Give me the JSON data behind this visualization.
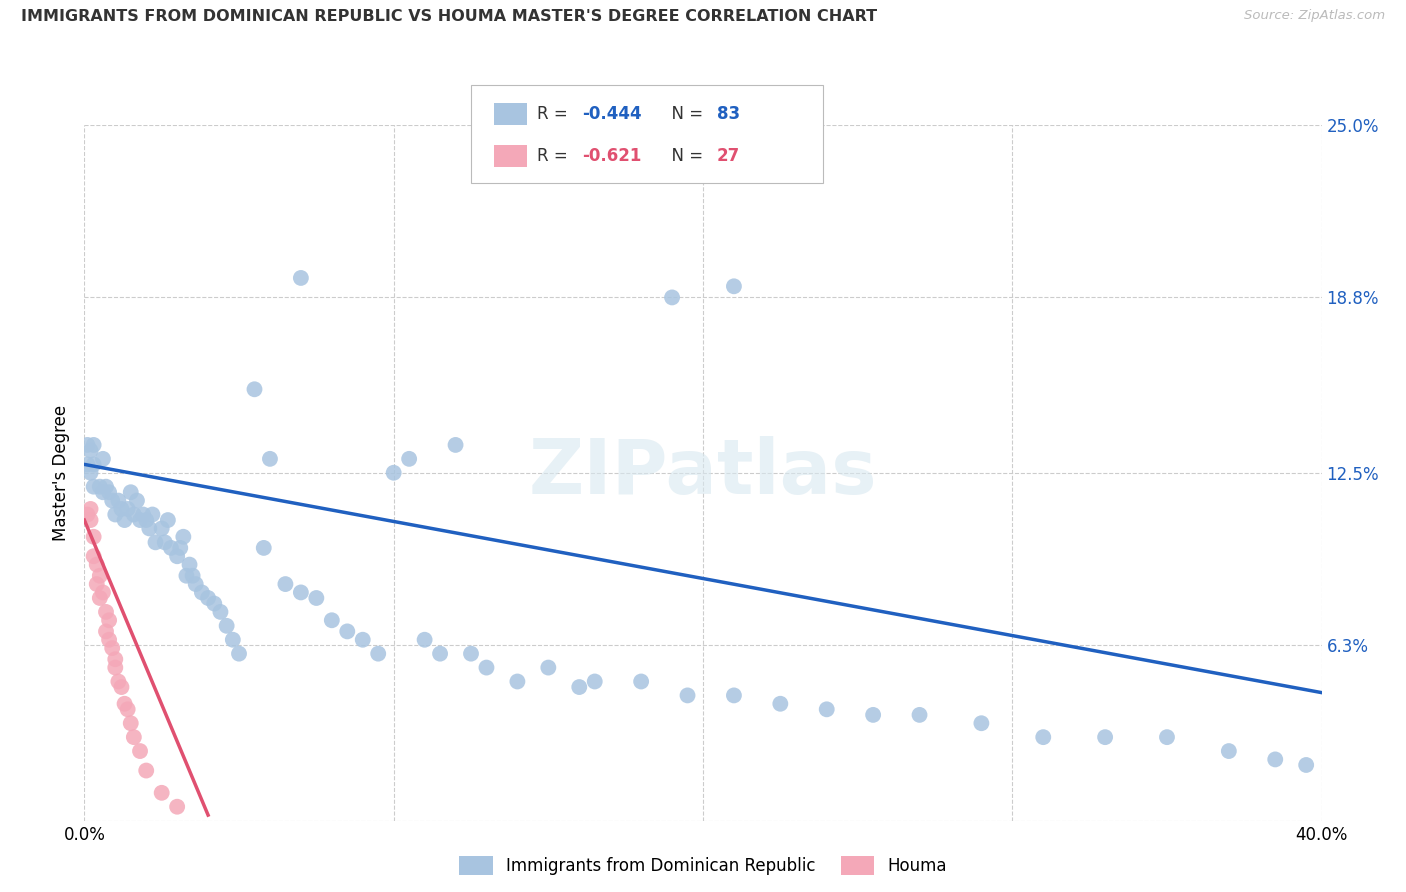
{
  "title": "IMMIGRANTS FROM DOMINICAN REPUBLIC VS HOUMA MASTER'S DEGREE CORRELATION CHART",
  "source": "Source: ZipAtlas.com",
  "ylabel": "Master's Degree",
  "xmin": 0.0,
  "xmax": 0.4,
  "ymin": 0.0,
  "ymax": 0.25,
  "blue_r": "-0.444",
  "blue_n": "83",
  "pink_r": "-0.621",
  "pink_n": "27",
  "blue_color": "#a8c4e0",
  "pink_color": "#f4a8b8",
  "blue_line_color": "#2060c0",
  "pink_line_color": "#e05070",
  "legend_label_blue": "Immigrants from Dominican Republic",
  "legend_label_pink": "Houma",
  "watermark": "ZIPatlas",
  "blue_points_x": [
    0.001,
    0.001,
    0.002,
    0.002,
    0.003,
    0.003,
    0.003,
    0.005,
    0.006,
    0.006,
    0.007,
    0.008,
    0.009,
    0.01,
    0.011,
    0.012,
    0.013,
    0.014,
    0.015,
    0.016,
    0.017,
    0.018,
    0.019,
    0.02,
    0.021,
    0.022,
    0.023,
    0.025,
    0.026,
    0.027,
    0.028,
    0.03,
    0.031,
    0.032,
    0.033,
    0.034,
    0.035,
    0.036,
    0.038,
    0.04,
    0.042,
    0.044,
    0.046,
    0.048,
    0.05,
    0.055,
    0.058,
    0.06,
    0.065,
    0.07,
    0.075,
    0.08,
    0.085,
    0.09,
    0.095,
    0.1,
    0.105,
    0.11,
    0.115,
    0.12,
    0.125,
    0.13,
    0.14,
    0.15,
    0.16,
    0.165,
    0.18,
    0.195,
    0.21,
    0.225,
    0.24,
    0.255,
    0.27,
    0.29,
    0.31,
    0.33,
    0.35,
    0.37,
    0.385,
    0.395,
    0.21,
    0.19,
    0.07
  ],
  "blue_points_y": [
    0.135,
    0.128,
    0.133,
    0.125,
    0.135,
    0.128,
    0.12,
    0.12,
    0.13,
    0.118,
    0.12,
    0.118,
    0.115,
    0.11,
    0.115,
    0.112,
    0.108,
    0.112,
    0.118,
    0.11,
    0.115,
    0.108,
    0.11,
    0.108,
    0.105,
    0.11,
    0.1,
    0.105,
    0.1,
    0.108,
    0.098,
    0.095,
    0.098,
    0.102,
    0.088,
    0.092,
    0.088,
    0.085,
    0.082,
    0.08,
    0.078,
    0.075,
    0.07,
    0.065,
    0.06,
    0.155,
    0.098,
    0.13,
    0.085,
    0.082,
    0.08,
    0.072,
    0.068,
    0.065,
    0.06,
    0.125,
    0.13,
    0.065,
    0.06,
    0.135,
    0.06,
    0.055,
    0.05,
    0.055,
    0.048,
    0.05,
    0.05,
    0.045,
    0.045,
    0.042,
    0.04,
    0.038,
    0.038,
    0.035,
    0.03,
    0.03,
    0.03,
    0.025,
    0.022,
    0.02,
    0.192,
    0.188,
    0.195
  ],
  "pink_points_x": [
    0.001,
    0.002,
    0.002,
    0.003,
    0.003,
    0.004,
    0.004,
    0.005,
    0.005,
    0.006,
    0.007,
    0.007,
    0.008,
    0.008,
    0.009,
    0.01,
    0.01,
    0.011,
    0.012,
    0.013,
    0.014,
    0.015,
    0.016,
    0.018,
    0.02,
    0.025,
    0.03
  ],
  "pink_points_y": [
    0.11,
    0.112,
    0.108,
    0.102,
    0.095,
    0.092,
    0.085,
    0.088,
    0.08,
    0.082,
    0.075,
    0.068,
    0.072,
    0.065,
    0.062,
    0.058,
    0.055,
    0.05,
    0.048,
    0.042,
    0.04,
    0.035,
    0.03,
    0.025,
    0.018,
    0.01,
    0.005
  ],
  "blue_trendline_x": [
    0.0,
    0.4
  ],
  "blue_trendline_y": [
    0.128,
    0.046
  ],
  "pink_trendline_x": [
    0.0,
    0.04
  ],
  "pink_trendline_y": [
    0.108,
    0.002
  ]
}
